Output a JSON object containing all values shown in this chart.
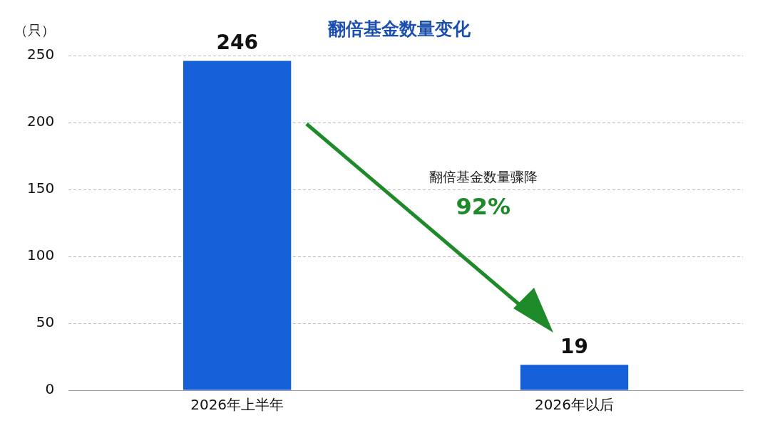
{
  "chart_data": {
    "type": "bar",
    "title": "翻倍基金数量变化",
    "ylabel": "（只）",
    "categories": [
      "2026年上半年",
      "2026年以后"
    ],
    "values": [
      246,
      19
    ],
    "color": "#1560d8",
    "ylim": [
      0,
      250
    ],
    "yticks": [
      0,
      50,
      100,
      150,
      200,
      250
    ],
    "grid": "y",
    "data_labels": true,
    "annotations": [
      "翻倍基金数量骤降",
      "92%"
    ]
  }
}
